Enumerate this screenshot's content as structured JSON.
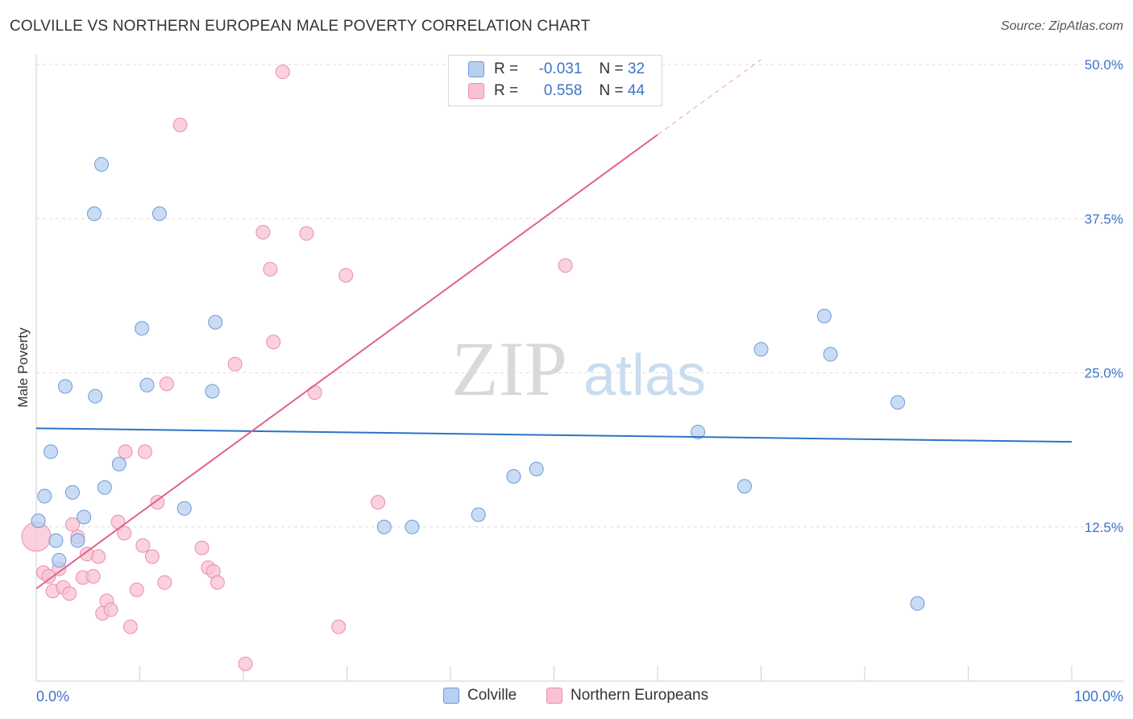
{
  "title": "COLVILLE VS NORTHERN EUROPEAN MALE POVERTY CORRELATION CHART",
  "source": "Source: ZipAtlas.com",
  "watermark": {
    "zip": "ZIP",
    "atlas": "atlas"
  },
  "legend": {
    "rows": [
      {
        "r_label": "R =",
        "r_value": "-0.031",
        "n_label": "N =",
        "n_value": "32"
      },
      {
        "r_label": "R =",
        "r_value": "0.558",
        "n_label": "N =",
        "n_value": "44"
      }
    ]
  },
  "bottom_legend": {
    "series1": "Colville",
    "series2": "Northern Europeans"
  },
  "colors": {
    "colville_fill": "#b7d0f0",
    "colville_stroke": "#6b9bd8",
    "colville_line": "#2e72c9",
    "northern_fill": "#f8c2d2",
    "northern_stroke": "#e88fad",
    "northern_line": "#e0628d",
    "axis_text": "#3d74c9",
    "grid": "#dddddd"
  },
  "chart_data": {
    "type": "scatter",
    "title": "COLVILLE VS NORTHERN EUROPEAN MALE POVERTY CORRELATION CHART",
    "xlabel": "",
    "ylabel": "Male Poverty",
    "xlim": [
      0,
      100
    ],
    "ylim": [
      0,
      50
    ],
    "x_tick_labels": [
      "0.0%",
      "100.0%"
    ],
    "y_ticks": [
      12.5,
      25.0,
      37.5,
      50.0
    ],
    "y_tick_labels": [
      "12.5%",
      "25.0%",
      "37.5%",
      "50.0%"
    ],
    "series": [
      {
        "name": "Colville",
        "r": -0.031,
        "n": 32,
        "trend": {
          "x": [
            0,
            100
          ],
          "y": [
            20.5,
            19.4
          ]
        },
        "points": [
          {
            "x": 6.3,
            "y": 41.9
          },
          {
            "x": 5.6,
            "y": 37.9
          },
          {
            "x": 11.9,
            "y": 37.9
          },
          {
            "x": 10.2,
            "y": 28.6
          },
          {
            "x": 17.3,
            "y": 29.1
          },
          {
            "x": 2.8,
            "y": 23.9
          },
          {
            "x": 5.7,
            "y": 23.1
          },
          {
            "x": 10.7,
            "y": 24.0
          },
          {
            "x": 17.0,
            "y": 23.5
          },
          {
            "x": 1.4,
            "y": 18.6
          },
          {
            "x": 8.0,
            "y": 17.6
          },
          {
            "x": 0.8,
            "y": 15.0
          },
          {
            "x": 3.5,
            "y": 15.3
          },
          {
            "x": 6.6,
            "y": 15.7
          },
          {
            "x": 14.3,
            "y": 14.0
          },
          {
            "x": 0.2,
            "y": 13.0
          },
          {
            "x": 4.6,
            "y": 13.3
          },
          {
            "x": 1.9,
            "y": 11.4
          },
          {
            "x": 4.0,
            "y": 11.4
          },
          {
            "x": 2.2,
            "y": 9.8
          },
          {
            "x": 33.6,
            "y": 12.5
          },
          {
            "x": 36.3,
            "y": 12.5
          },
          {
            "x": 42.7,
            "y": 13.5
          },
          {
            "x": 46.1,
            "y": 16.6
          },
          {
            "x": 48.3,
            "y": 17.2
          },
          {
            "x": 63.9,
            "y": 20.2
          },
          {
            "x": 68.4,
            "y": 15.8
          },
          {
            "x": 70.0,
            "y": 26.9
          },
          {
            "x": 76.1,
            "y": 29.6
          },
          {
            "x": 76.7,
            "y": 26.5
          },
          {
            "x": 83.2,
            "y": 22.6
          },
          {
            "x": 85.1,
            "y": 6.3
          }
        ]
      },
      {
        "name": "Northern Europeans",
        "r": 0.558,
        "n": 44,
        "trend": {
          "x": [
            0,
            60
          ],
          "y": [
            7.5,
            44.3
          ]
        },
        "trend_dashed": {
          "x": [
            60,
            70
          ],
          "y": [
            44.3,
            50.4
          ]
        },
        "points": [
          {
            "x": 23.8,
            "y": 49.4
          },
          {
            "x": 13.9,
            "y": 45.1
          },
          {
            "x": 21.9,
            "y": 36.4
          },
          {
            "x": 26.1,
            "y": 36.3
          },
          {
            "x": 22.6,
            "y": 33.4
          },
          {
            "x": 29.9,
            "y": 32.9
          },
          {
            "x": 51.1,
            "y": 33.7
          },
          {
            "x": 22.9,
            "y": 27.5
          },
          {
            "x": 19.2,
            "y": 25.7
          },
          {
            "x": 12.6,
            "y": 24.1
          },
          {
            "x": 26.9,
            "y": 23.4
          },
          {
            "x": 8.6,
            "y": 18.6
          },
          {
            "x": 10.5,
            "y": 18.6
          },
          {
            "x": 11.7,
            "y": 14.5
          },
          {
            "x": 33.0,
            "y": 14.5
          },
          {
            "x": 3.5,
            "y": 12.7
          },
          {
            "x": 7.9,
            "y": 12.9
          },
          {
            "x": 8.5,
            "y": 12.0
          },
          {
            "x": 4.0,
            "y": 11.7
          },
          {
            "x": 0.0,
            "y": 11.7
          },
          {
            "x": 10.3,
            "y": 11.0
          },
          {
            "x": 16.0,
            "y": 10.8
          },
          {
            "x": 4.9,
            "y": 10.3
          },
          {
            "x": 6.0,
            "y": 10.1
          },
          {
            "x": 11.2,
            "y": 10.1
          },
          {
            "x": 2.2,
            "y": 9.1
          },
          {
            "x": 16.6,
            "y": 9.2
          },
          {
            "x": 17.1,
            "y": 8.9
          },
          {
            "x": 0.7,
            "y": 8.8
          },
          {
            "x": 1.2,
            "y": 8.5
          },
          {
            "x": 4.5,
            "y": 8.4
          },
          {
            "x": 5.5,
            "y": 8.5
          },
          {
            "x": 12.4,
            "y": 8.0
          },
          {
            "x": 17.5,
            "y": 8.0
          },
          {
            "x": 1.6,
            "y": 7.3
          },
          {
            "x": 2.6,
            "y": 7.6
          },
          {
            "x": 3.2,
            "y": 7.1
          },
          {
            "x": 9.7,
            "y": 7.4
          },
          {
            "x": 6.8,
            "y": 6.5
          },
          {
            "x": 6.4,
            "y": 5.5
          },
          {
            "x": 7.2,
            "y": 5.8
          },
          {
            "x": 9.1,
            "y": 4.4
          },
          {
            "x": 29.2,
            "y": 4.4
          },
          {
            "x": 20.2,
            "y": 1.4
          }
        ]
      }
    ]
  }
}
